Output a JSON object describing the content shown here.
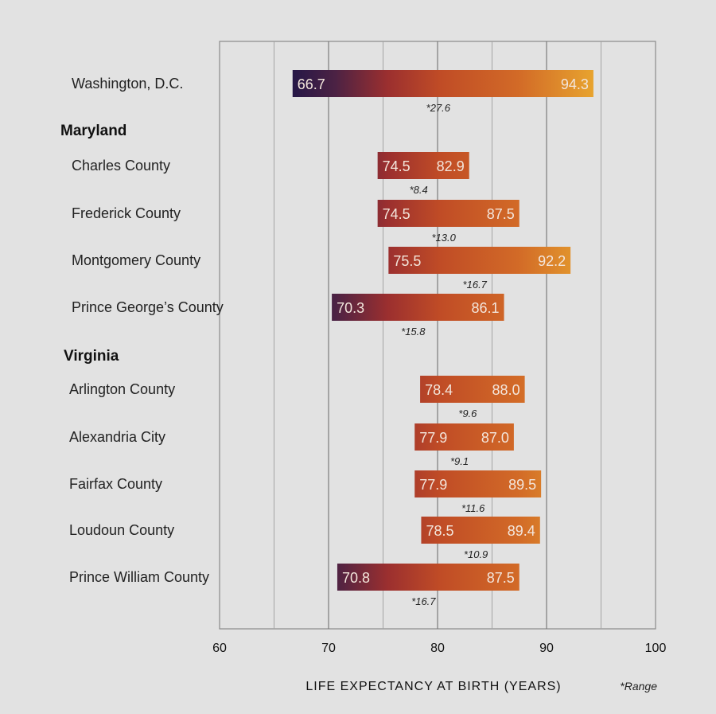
{
  "chart_data": {
    "type": "bar",
    "subtype": "floating-range",
    "xlabel": "LIFE EXPECTANCY AT BIRTH (YEARS)",
    "xlim": [
      60,
      100
    ],
    "xticks": [
      60,
      70,
      80,
      90,
      100
    ],
    "xtick_labels": [
      "60",
      "70",
      "80",
      "90",
      "100"
    ],
    "minor_gridlines": [
      65,
      75,
      85,
      95
    ],
    "grid": true,
    "note": "*Range",
    "gradient_colors": [
      "#1f1547",
      "#4b2244",
      "#9b2f2f",
      "#c04c26",
      "#d26a27",
      "#e8a52f"
    ],
    "rows": [
      {
        "kind": "item",
        "label": "Washington, D.C.",
        "low": 66.7,
        "high": 94.3,
        "low_label": "66.7",
        "high_label": "94.3",
        "range_label": "*27.6"
      },
      {
        "kind": "group",
        "label": "Maryland"
      },
      {
        "kind": "item",
        "label": "Charles County",
        "low": 74.5,
        "high": 82.9,
        "low_label": "74.5",
        "high_label": "82.9",
        "range_label": "*8.4"
      },
      {
        "kind": "item",
        "label": "Frederick County",
        "low": 74.5,
        "high": 87.5,
        "low_label": "74.5",
        "high_label": "87.5",
        "range_label": "*13.0"
      },
      {
        "kind": "item",
        "label": "Montgomery County",
        "low": 75.5,
        "high": 92.2,
        "low_label": "75.5",
        "high_label": "92.2",
        "range_label": "*16.7"
      },
      {
        "kind": "item",
        "label": "Prince George’s County",
        "low": 70.3,
        "high": 86.1,
        "low_label": "70.3",
        "high_label": "86.1",
        "range_label": "*15.8"
      },
      {
        "kind": "group",
        "label": "Virginia"
      },
      {
        "kind": "item",
        "label": "Arlington County",
        "low": 78.4,
        "high": 88.0,
        "low_label": "78.4",
        "high_label": "88.0",
        "range_label": "*9.6"
      },
      {
        "kind": "item",
        "label": "Alexandria City",
        "low": 77.9,
        "high": 87.0,
        "low_label": "77.9",
        "high_label": "87.0",
        "range_label": "*9.1"
      },
      {
        "kind": "item",
        "label": "Fairfax County",
        "low": 77.9,
        "high": 89.5,
        "low_label": "77.9",
        "high_label": "89.5",
        "range_label": "*11.6"
      },
      {
        "kind": "item",
        "label": "Loudoun County",
        "low": 78.5,
        "high": 89.4,
        "low_label": "78.5",
        "high_label": "89.4",
        "range_label": "*10.9"
      },
      {
        "kind": "item",
        "label": "Prince William County",
        "low": 70.8,
        "high": 87.5,
        "low_label": "70.8",
        "high_label": "87.5",
        "range_label": "*16.7"
      }
    ]
  }
}
